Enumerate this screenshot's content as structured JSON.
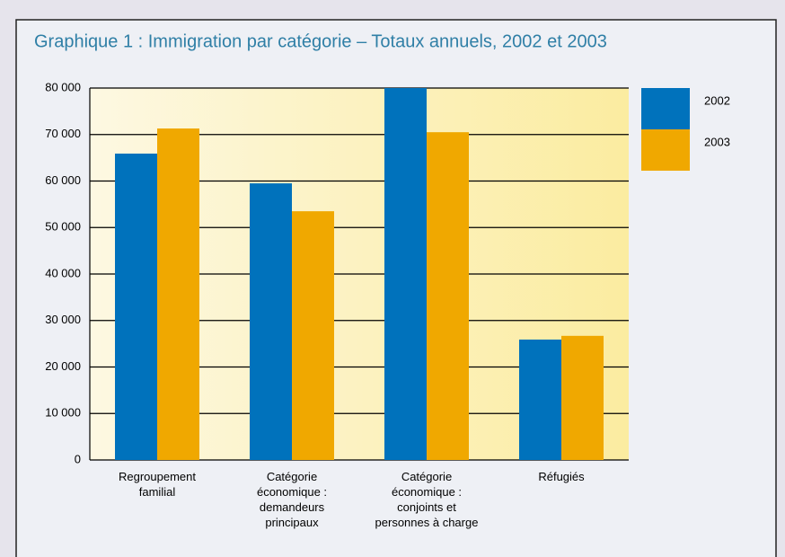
{
  "chart_data": {
    "type": "bar",
    "title": "Graphique 1 : Immigration par catégorie – Totaux annuels, 2002 et 2003",
    "categories": [
      "Regroupement\nfamilial",
      "Catégorie\néconomique :\ndemandeurs\nprincipaux",
      "Catégorie\néconomique :\nconjoints et\npersonnes à charge",
      "Réfugiés"
    ],
    "series": [
      {
        "name": "2002",
        "color": "#0072bc",
        "values": [
          65900,
          59500,
          80000,
          25900
        ]
      },
      {
        "name": "2003",
        "color": "#f0a800",
        "values": [
          71300,
          53500,
          70500,
          26700
        ]
      }
    ],
    "ylim": [
      0,
      80000
    ],
    "yticks": [
      0,
      {
        "value": 10000,
        "label": "10 000"
      },
      {
        "value": 20000,
        "label": "20 000"
      },
      {
        "value": 30000,
        "label": "30 000"
      },
      {
        "value": 40000,
        "label": "40 000"
      },
      {
        "value": 50000,
        "label": "50 000"
      },
      {
        "value": 60000,
        "label": "60 000"
      },
      {
        "value": 70000,
        "label": "70 000"
      },
      {
        "value": 80000,
        "label": "80 000"
      }
    ],
    "grid": true
  }
}
